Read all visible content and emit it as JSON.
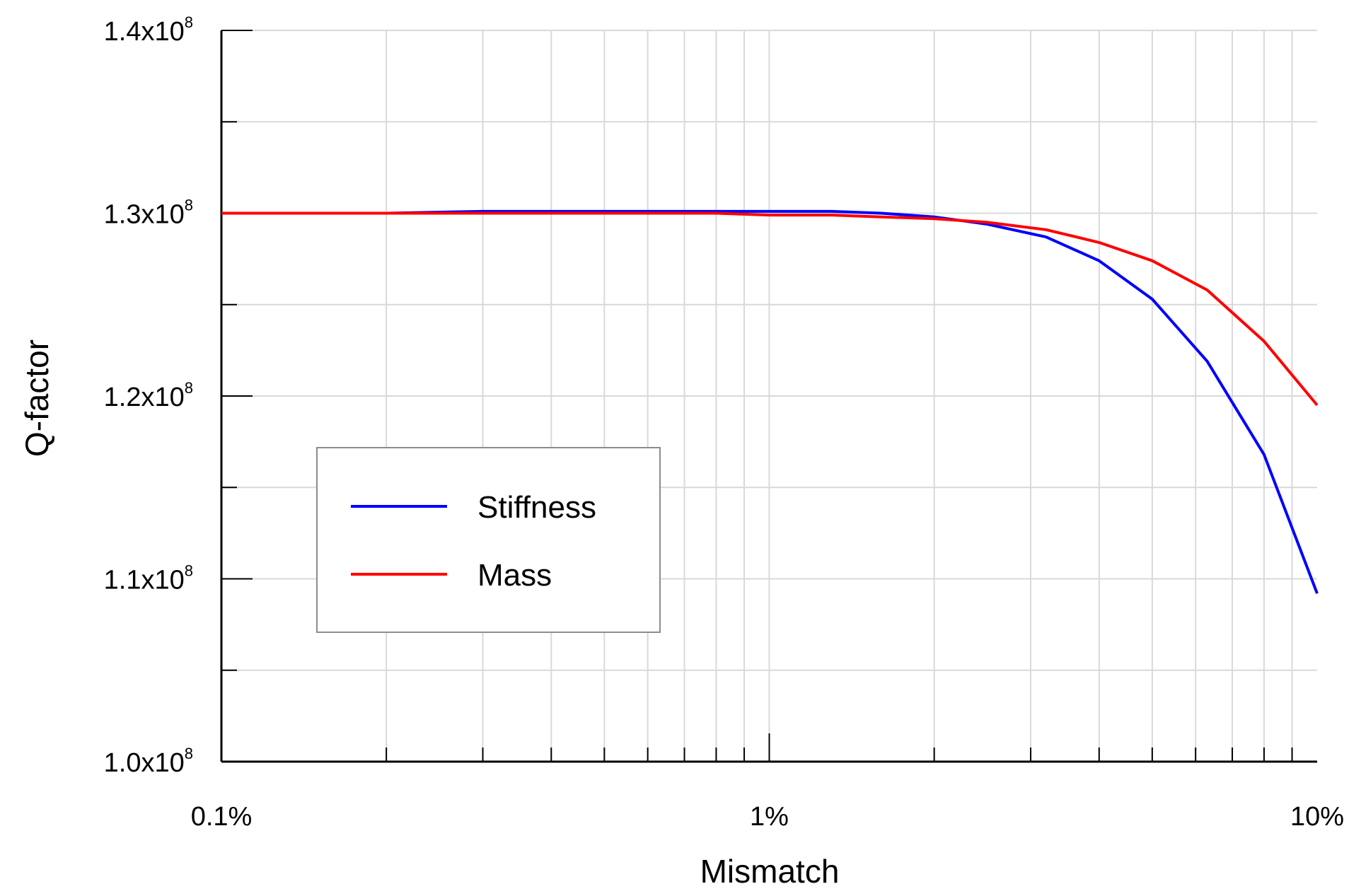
{
  "chart_data": {
    "type": "line",
    "xlabel": "Mismatch",
    "ylabel": "Q-factor",
    "x_scale": "log",
    "xlim": [
      0.1,
      10
    ],
    "ylim": [
      100000000.0,
      140000000.0
    ],
    "grid": true,
    "legend_position": "center-left",
    "x_tick_labels": [
      {
        "value": 0.1,
        "label": "0.1%"
      },
      {
        "value": 1,
        "label": "1%"
      },
      {
        "value": 10,
        "label": "10%"
      }
    ],
    "y_tick_labels": [
      {
        "value": 100000000.0,
        "mantissa": "1.0x10",
        "exponent": "8"
      },
      {
        "value": 110000000.0,
        "mantissa": "1.1x10",
        "exponent": "8"
      },
      {
        "value": 120000000.0,
        "mantissa": "1.2x10",
        "exponent": "8"
      },
      {
        "value": 130000000.0,
        "mantissa": "1.3x10",
        "exponent": "8"
      },
      {
        "value": 140000000.0,
        "mantissa": "1.4x10",
        "exponent": "8"
      }
    ],
    "series": [
      {
        "name": "Stiffness",
        "color": "#0000ff",
        "points": [
          [
            0.1,
            130000000.0
          ],
          [
            0.2,
            130000000.0
          ],
          [
            0.3,
            130100000.0
          ],
          [
            0.5,
            130100000.0
          ],
          [
            0.8,
            130100000.0
          ],
          [
            1.0,
            130100000.0
          ],
          [
            1.3,
            130100000.0
          ],
          [
            1.6,
            130000000.0
          ],
          [
            2.0,
            129800000.0
          ],
          [
            2.5,
            129400000.0
          ],
          [
            3.2,
            128700000.0
          ],
          [
            4.0,
            127400000.0
          ],
          [
            5.0,
            125300000.0
          ],
          [
            6.3,
            121900000.0
          ],
          [
            8.0,
            116800000.0
          ],
          [
            10.0,
            109200000.0
          ]
        ]
      },
      {
        "name": "Mass",
        "color": "#ff0000",
        "points": [
          [
            0.1,
            130000000.0
          ],
          [
            0.2,
            130000000.0
          ],
          [
            0.3,
            130000000.0
          ],
          [
            0.5,
            130000000.0
          ],
          [
            0.8,
            130000000.0
          ],
          [
            1.0,
            129900000.0
          ],
          [
            1.3,
            129900000.0
          ],
          [
            1.6,
            129800000.0
          ],
          [
            2.0,
            129700000.0
          ],
          [
            2.5,
            129500000.0
          ],
          [
            3.2,
            129100000.0
          ],
          [
            4.0,
            128400000.0
          ],
          [
            5.0,
            127400000.0
          ],
          [
            6.3,
            125800000.0
          ],
          [
            8.0,
            123000000.0
          ],
          [
            10.0,
            119500000.0
          ]
        ]
      }
    ]
  }
}
